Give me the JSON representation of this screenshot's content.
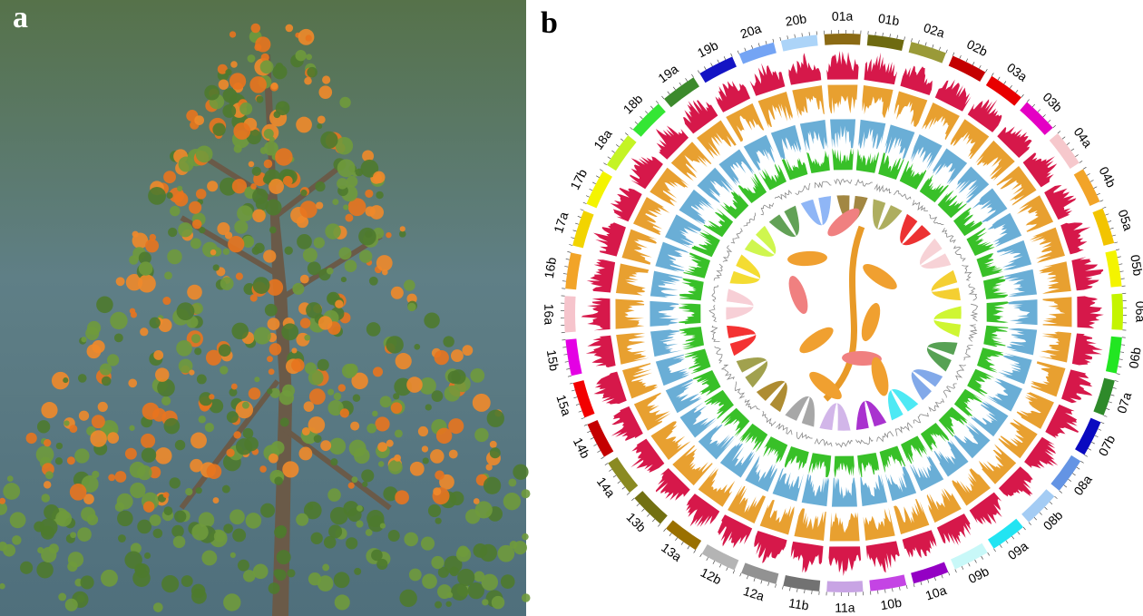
{
  "panels": [
    {
      "label": "a"
    },
    {
      "label": "b"
    }
  ],
  "chromosomes": [
    {
      "label": "01a",
      "color": "#8b6a14"
    },
    {
      "label": "01b",
      "color": "#6e6a10"
    },
    {
      "label": "02a",
      "color": "#9a9a38"
    },
    {
      "label": "02b",
      "color": "#c40000"
    },
    {
      "label": "03a",
      "color": "#e80000"
    },
    {
      "label": "03b",
      "color": "#e400c4"
    },
    {
      "label": "04a",
      "color": "#f6c8cc"
    },
    {
      "label": "04b",
      "color": "#f2a428"
    },
    {
      "label": "05a",
      "color": "#f2c400"
    },
    {
      "label": "05b",
      "color": "#f4f400"
    },
    {
      "label": "06a",
      "color": "#c4f400"
    },
    {
      "label": "06b",
      "color": "#22e622"
    },
    {
      "label": "07a",
      "color": "#2e8a2a"
    },
    {
      "label": "07b",
      "color": "#0a0ac0"
    },
    {
      "label": "08a",
      "color": "#6494e4"
    },
    {
      "label": "08b",
      "color": "#a4ccf4"
    },
    {
      "label": "09a",
      "color": "#22e4f2"
    },
    {
      "label": "09b",
      "color": "#c8f8f8"
    },
    {
      "label": "10a",
      "color": "#9400c4"
    },
    {
      "label": "10b",
      "color": "#c444e4"
    },
    {
      "label": "11a",
      "color": "#c8a4e4"
    },
    {
      "label": "11b",
      "color": "#727272"
    },
    {
      "label": "12a",
      "color": "#929292"
    },
    {
      "label": "12b",
      "color": "#b4b4b4"
    },
    {
      "label": "13a",
      "color": "#9a7000"
    },
    {
      "label": "13b",
      "color": "#727012"
    },
    {
      "label": "14a",
      "color": "#8a8a22"
    },
    {
      "label": "14b",
      "color": "#c40000"
    },
    {
      "label": "15a",
      "color": "#f20000"
    },
    {
      "label": "15b",
      "color": "#e400e4"
    },
    {
      "label": "16a",
      "color": "#f6c4cc"
    },
    {
      "label": "16b",
      "color": "#f2a428"
    },
    {
      "label": "17a",
      "color": "#f2d400"
    },
    {
      "label": "17b",
      "color": "#f4f400"
    },
    {
      "label": "18a",
      "color": "#c4f424"
    },
    {
      "label": "18b",
      "color": "#34e634"
    },
    {
      "label": "19a",
      "color": "#3c8a2c"
    },
    {
      "label": "19b",
      "color": "#1414c4"
    },
    {
      "label": "20a",
      "color": "#74a4f4"
    },
    {
      "label": "20b",
      "color": "#acd4f8"
    }
  ]
}
